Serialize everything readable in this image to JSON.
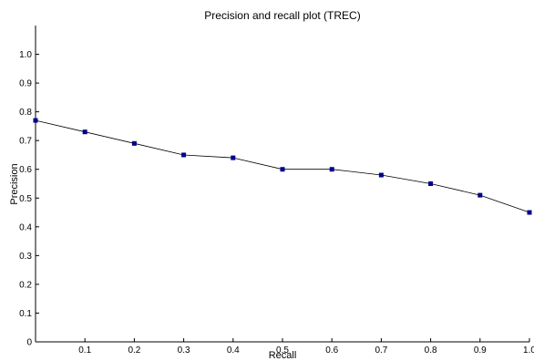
{
  "chart_data": {
    "type": "line",
    "title": "Precision and recall plot (TREC)",
    "xlabel": "Recall",
    "ylabel": "Precision",
    "xlim": [
      0,
      1.0
    ],
    "ylim": [
      0,
      1.1
    ],
    "grid": false,
    "x_ticks": [
      "0.1",
      "0.2",
      "0.3",
      "0.4",
      "0.5",
      "0.6",
      "0.7",
      "0.8",
      "0.9",
      "1.0"
    ],
    "y_ticks": [
      "0",
      "0.1",
      "0.2",
      "0.3",
      "0.4",
      "0.5",
      "0.6",
      "0.7",
      "0.8",
      "0.9",
      "1.0"
    ],
    "series": [
      {
        "x": [
          0,
          0.1,
          0.2,
          0.3,
          0.4,
          0.5,
          0.6,
          0.7,
          0.8,
          0.9,
          1.0
        ],
        "y": [
          0.77,
          0.73,
          0.69,
          0.65,
          0.64,
          0.6,
          0.6,
          0.58,
          0.55,
          0.51,
          0.45
        ],
        "line_color": "#000000",
        "marker_color": "#00008b"
      }
    ]
  }
}
